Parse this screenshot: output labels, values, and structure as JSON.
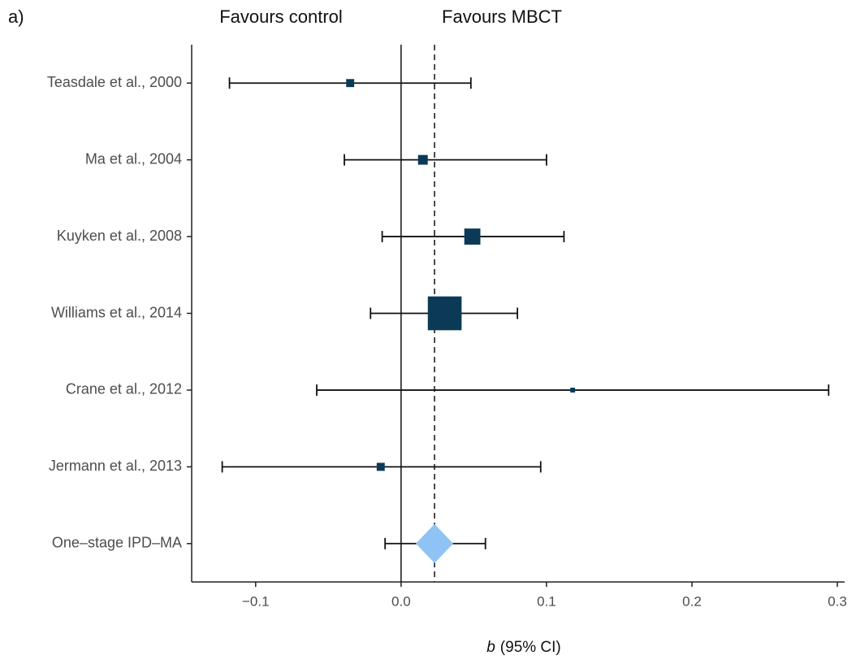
{
  "chart_data": {
    "type": "forest",
    "panel_label": "a)",
    "left_header": "Favours control",
    "right_header": "Favours MBCT",
    "xlabel_symbol": "b",
    "xlabel": "(95% CI)",
    "categories": [
      "Teasdale et al., 2000",
      "Ma et al., 2004",
      "Kuyken et al., 2008",
      "Williams et al., 2014",
      "Crane et al., 2012",
      "Jermann et al., 2013"
    ],
    "estimates": [
      -0.035,
      0.015,
      0.049,
      0.03,
      0.118,
      -0.014
    ],
    "lower": [
      -0.118,
      -0.039,
      -0.013,
      -0.021,
      -0.058,
      -0.123
    ],
    "upper": [
      0.048,
      0.1,
      0.112,
      0.08,
      0.294,
      0.096
    ],
    "weights": [
      3.9,
      5.7,
      15.7,
      69.3,
      1.4,
      3.9
    ],
    "color": "#0b3a57",
    "pooled": {
      "name": "One–stage IPD–MA",
      "estimate": 0.023,
      "lower": -0.011,
      "upper": 0.058,
      "color": "#8fc3f5"
    },
    "xlim": [
      -0.144,
      0.305
    ],
    "xticks": [
      {
        "value": -0.1,
        "label": "−0.1"
      },
      {
        "value": 0,
        "label": "0.0"
      },
      0.1,
      0.2,
      0.3
    ]
  }
}
